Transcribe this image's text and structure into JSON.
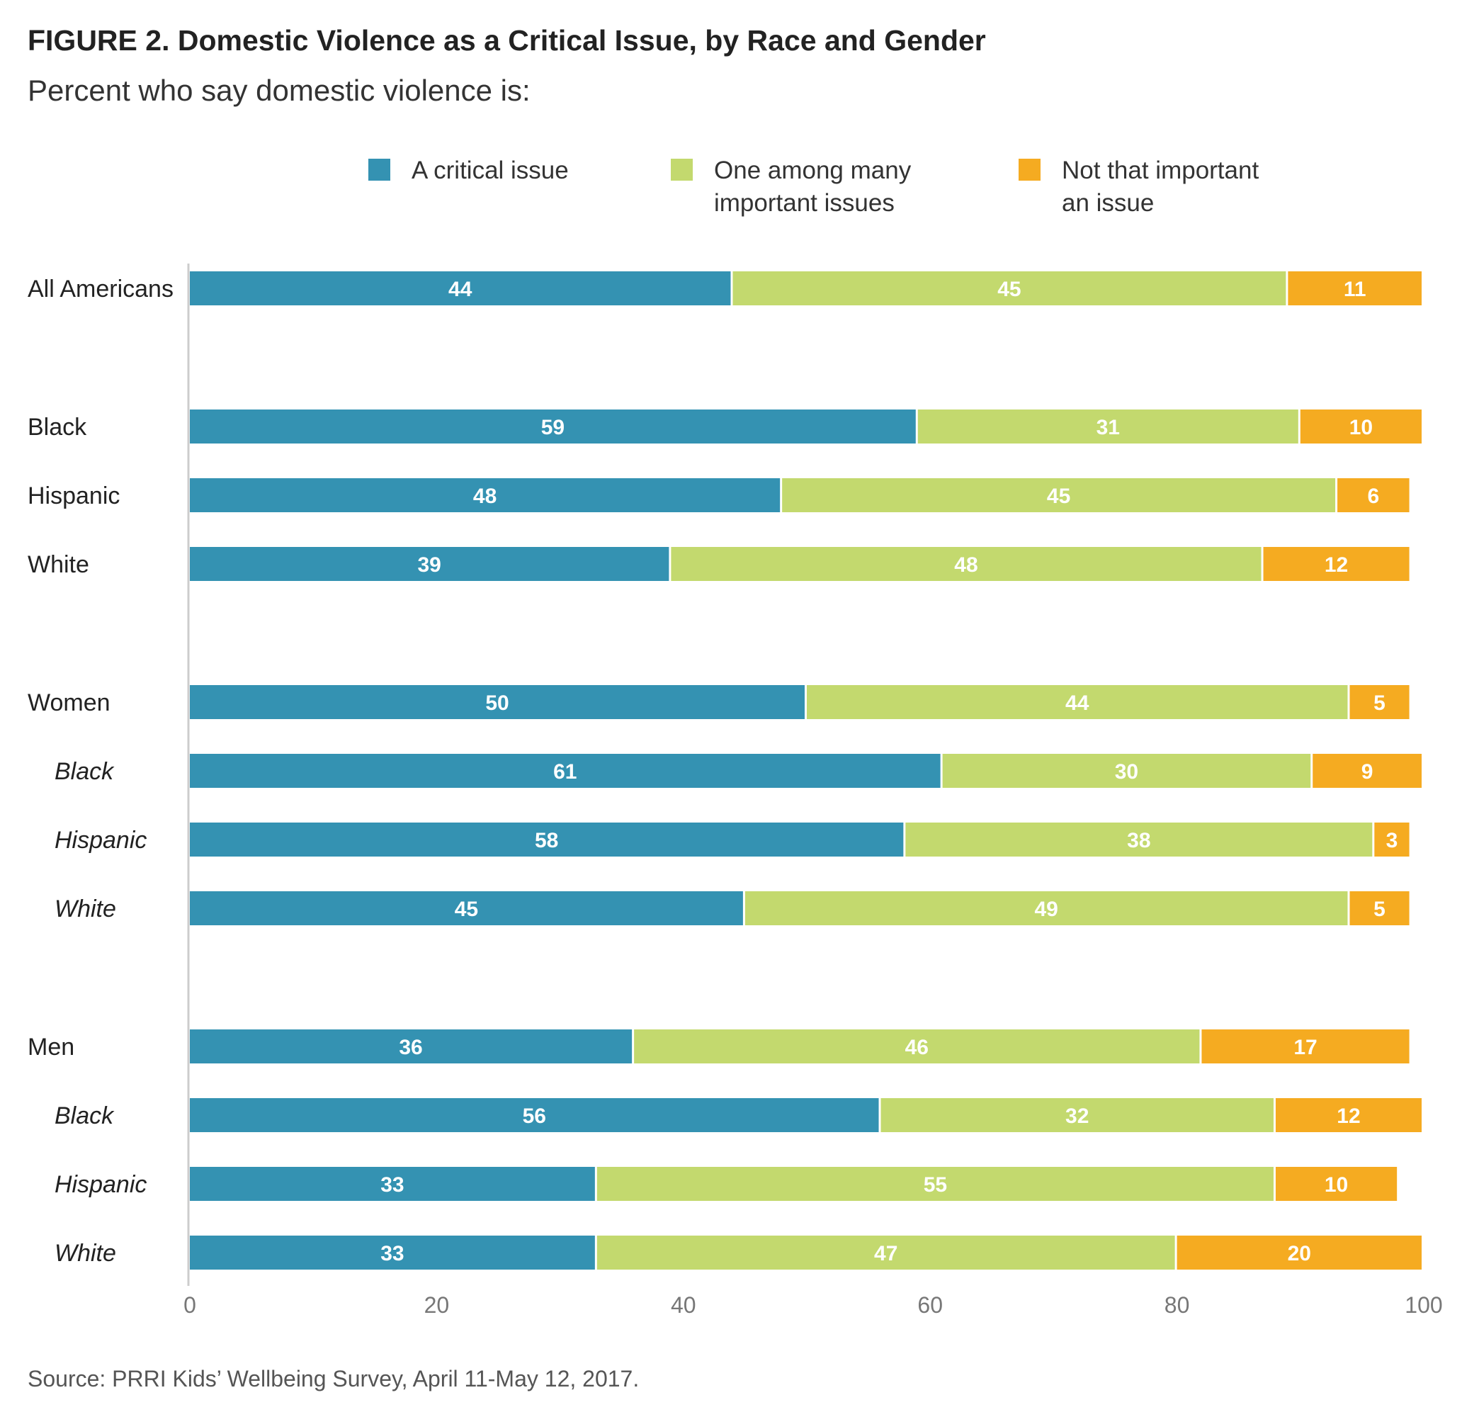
{
  "title": "FIGURE 2.  Domestic Violence as a Critical Issue, by Race and Gender",
  "subtitle": "Percent who say domestic violence is:",
  "source": "Source: PRRI Kids’ Wellbeing Survey, April 11-May 12, 2017.",
  "colors": {
    "critical": "#3492b2",
    "one_among": "#c3d96e",
    "not_important": "#f5ab21",
    "axis": "#cccccc",
    "tick_label": "#777777",
    "bar_label": "#ffffff"
  },
  "legend": [
    {
      "label": "A critical issue",
      "color": "#3492b2"
    },
    {
      "label": "One among many\nimportant issues",
      "color": "#c3d96e"
    },
    {
      "label": "Not that important\nan issue",
      "color": "#f5ab21"
    }
  ],
  "chart_data": {
    "type": "bar",
    "orientation": "horizontal",
    "stacked": true,
    "xlim": [
      0,
      100
    ],
    "xticks": [
      0,
      20,
      40,
      60,
      80,
      100
    ],
    "grid": false,
    "legend_position": "top",
    "categories": [
      "All Americans",
      "Black",
      "Hispanic",
      "White",
      "Women",
      "Black",
      "Hispanic",
      "White",
      "Men",
      "Black",
      "Hispanic",
      "White"
    ],
    "category_italic": [
      false,
      false,
      false,
      false,
      false,
      true,
      true,
      true,
      false,
      true,
      true,
      true
    ],
    "series": [
      {
        "name": "A critical issue",
        "values": [
          44,
          59,
          48,
          39,
          50,
          61,
          58,
          45,
          36,
          56,
          33,
          33
        ]
      },
      {
        "name": "One among many important issues",
        "values": [
          45,
          31,
          45,
          48,
          44,
          30,
          38,
          49,
          46,
          32,
          55,
          47
        ]
      },
      {
        "name": "Not that important an issue",
        "values": [
          11,
          10,
          6,
          12,
          5,
          9,
          3,
          5,
          17,
          12,
          10,
          20
        ]
      }
    ]
  }
}
